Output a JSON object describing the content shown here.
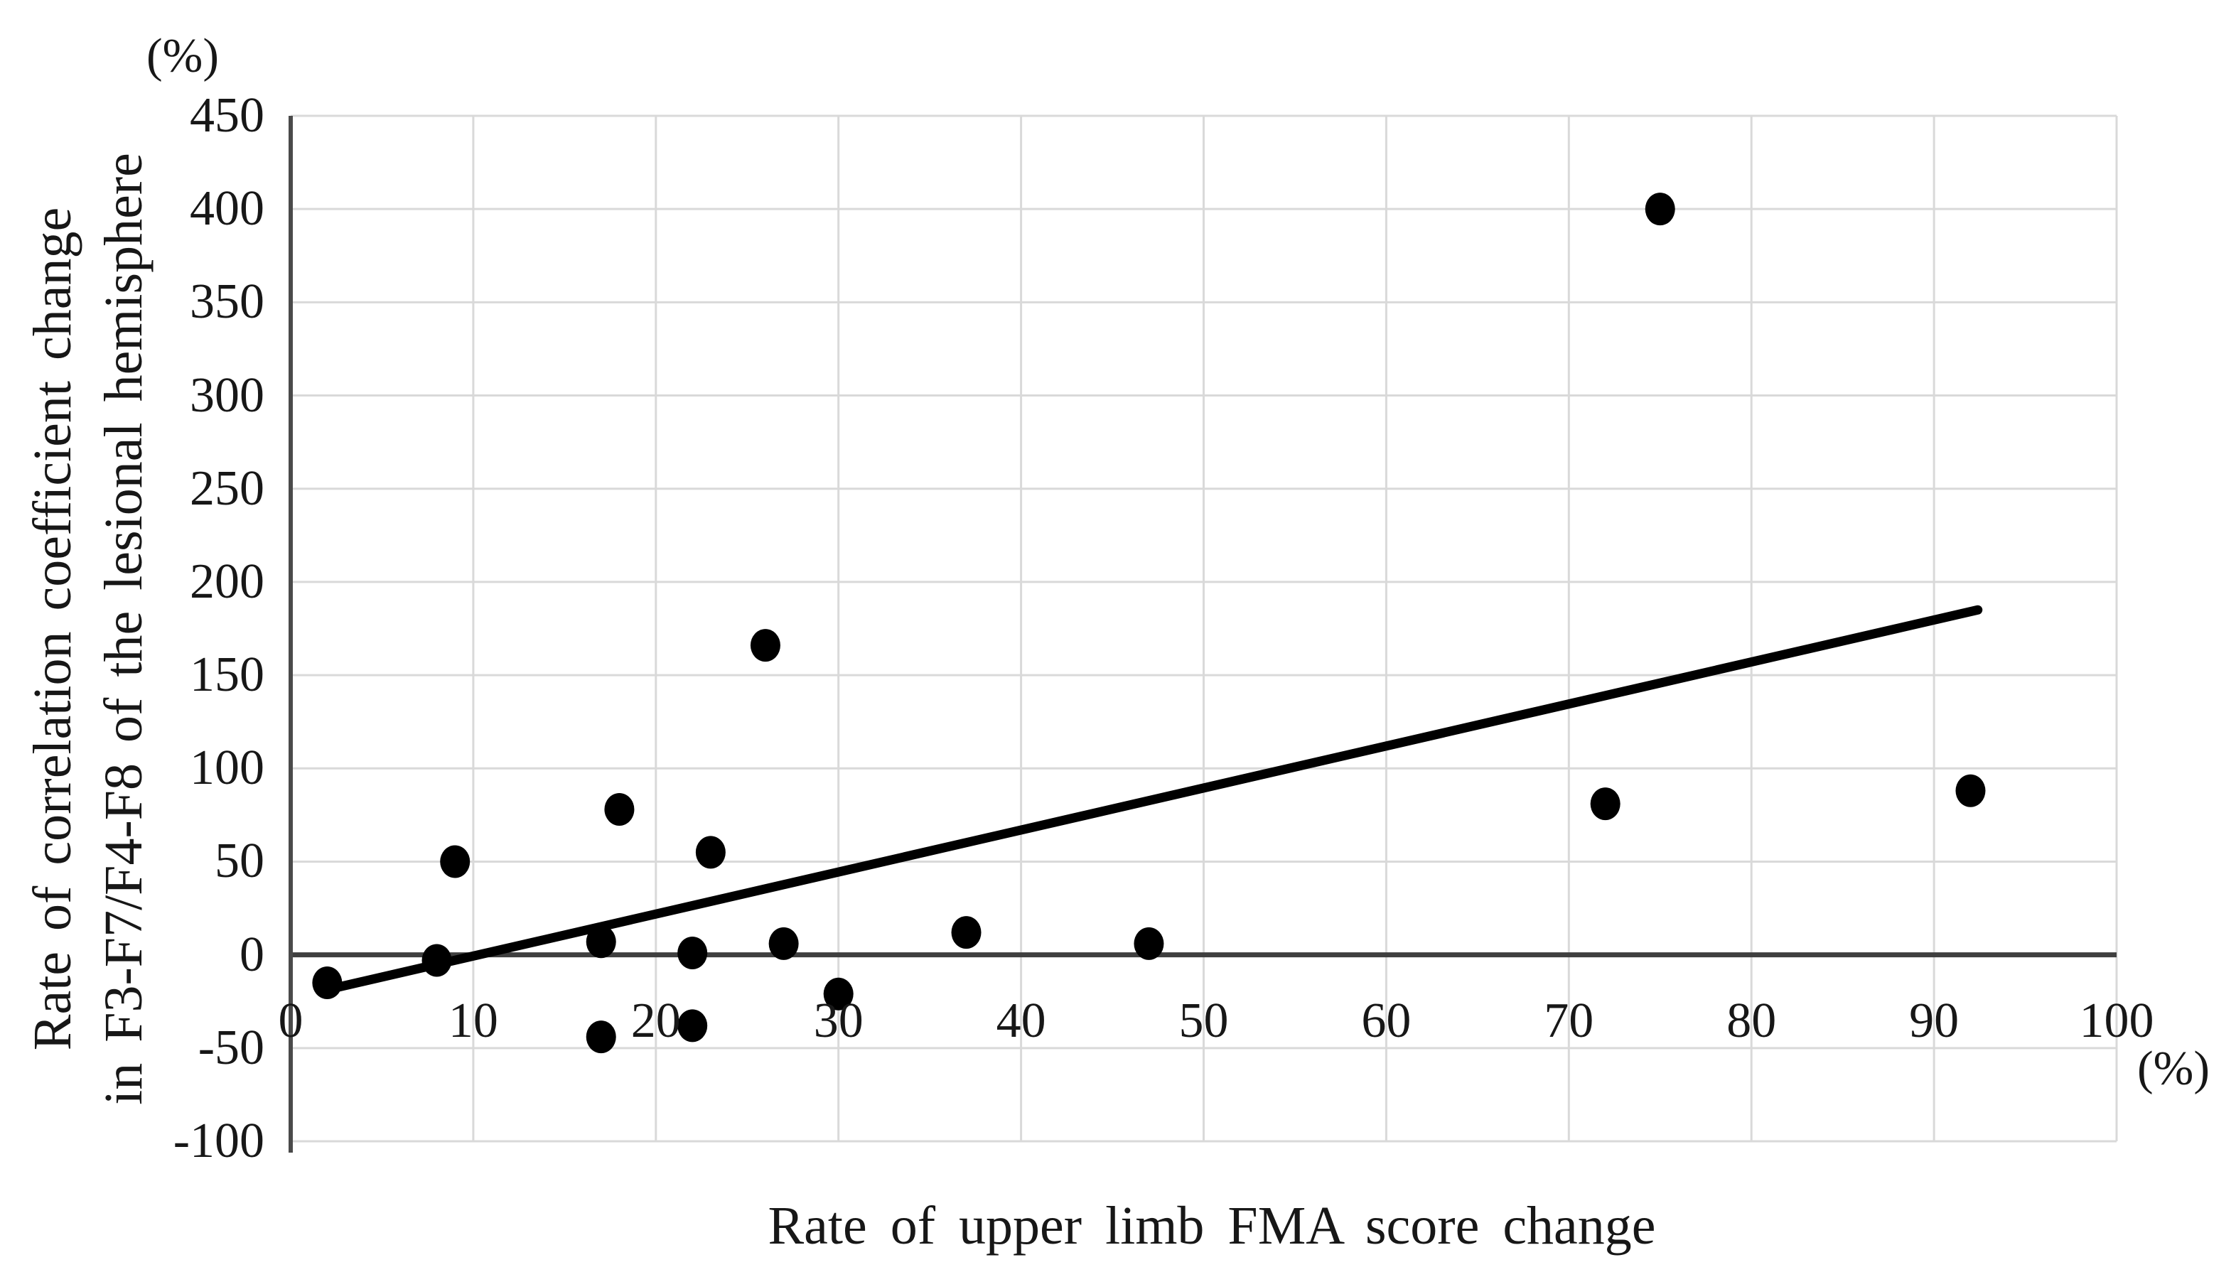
{
  "chart_data": {
    "type": "scatter",
    "title": "",
    "xlabel": "Rate of upper limb FMA score change",
    "ylabel_lines": [
      "Rate of correlation coefficient change",
      "in F3-F7/F4-F8 of the lesional hemisphere"
    ],
    "x_unit": "(%)",
    "y_unit": "(%)",
    "xlim": [
      0,
      100
    ],
    "ylim": [
      -100,
      450
    ],
    "x_ticks": [
      0,
      10,
      20,
      30,
      40,
      50,
      60,
      70,
      80,
      90,
      100
    ],
    "y_ticks": [
      450,
      400,
      350,
      300,
      250,
      200,
      150,
      100,
      50,
      0,
      -50,
      -100
    ],
    "grid": true,
    "legend_position": "none",
    "points": [
      {
        "x": 2,
        "y": -15
      },
      {
        "x": 8,
        "y": -3
      },
      {
        "x": 9,
        "y": 50
      },
      {
        "x": 17,
        "y": 7
      },
      {
        "x": 17,
        "y": -44
      },
      {
        "x": 18,
        "y": 78
      },
      {
        "x": 22,
        "y": 1
      },
      {
        "x": 22,
        "y": -38
      },
      {
        "x": 23,
        "y": 55
      },
      {
        "x": 26,
        "y": 166
      },
      {
        "x": 27,
        "y": 6
      },
      {
        "x": 30,
        "y": -21
      },
      {
        "x": 37,
        "y": 12
      },
      {
        "x": 47,
        "y": 6
      },
      {
        "x": 72,
        "y": 81
      },
      {
        "x": 75,
        "y": 400
      },
      {
        "x": 92,
        "y": 88
      }
    ],
    "trendline": {
      "x1": 2.3,
      "y1": -18,
      "x2": 92.4,
      "y2": 185
    },
    "colors": {
      "point": "#000000",
      "trendline": "#000000",
      "gridline": "#d9d9d9",
      "axis": "#4a4a4a",
      "zero_line": "#3f3f3f",
      "text": "#171717",
      "background": "#ffffff"
    }
  }
}
